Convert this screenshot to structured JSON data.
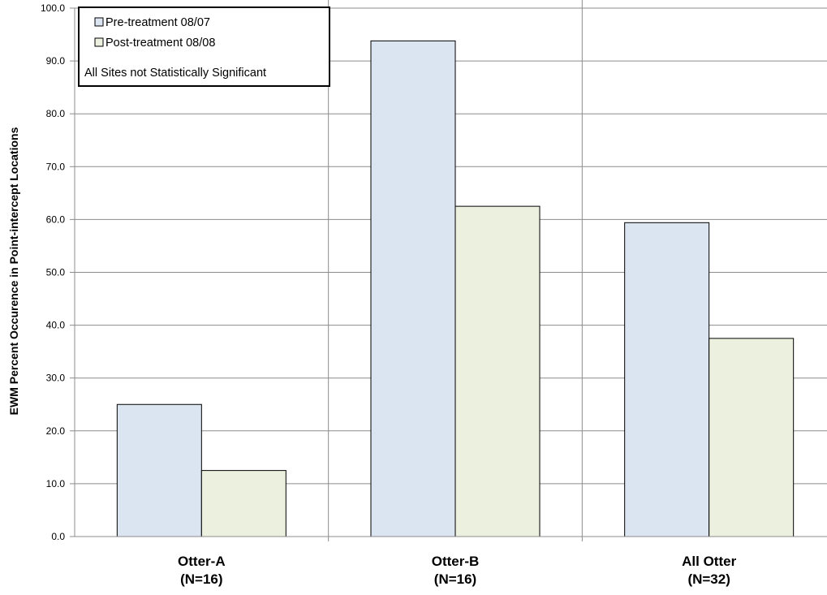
{
  "chart_data": {
    "type": "bar",
    "categories": [
      "Otter-A",
      "Otter-B",
      "All Otter"
    ],
    "category_sublabels": [
      "(N=16)",
      "(N=16)",
      "(N=32)"
    ],
    "series": [
      {
        "name": "Pre-treatment 08/07",
        "values": [
          25.0,
          93.8,
          59.4
        ],
        "color": "#dbe5f1"
      },
      {
        "name": "Post-treatment 08/08",
        "values": [
          12.5,
          62.5,
          37.5
        ],
        "color": "#ebf1de"
      }
    ],
    "ylabel": "EWM Percent Occurence in Point-intercept Locations",
    "xlabel": "",
    "title": "",
    "ylim": [
      0,
      100
    ],
    "yticks": [
      "0.0",
      "10.0",
      "20.0",
      "30.0",
      "40.0",
      "50.0",
      "60.0",
      "70.0",
      "80.0",
      "90.0",
      "100.0"
    ],
    "grid": true,
    "legend_position": "top-left",
    "legend_note": "All Sites not Statistically Significant"
  }
}
